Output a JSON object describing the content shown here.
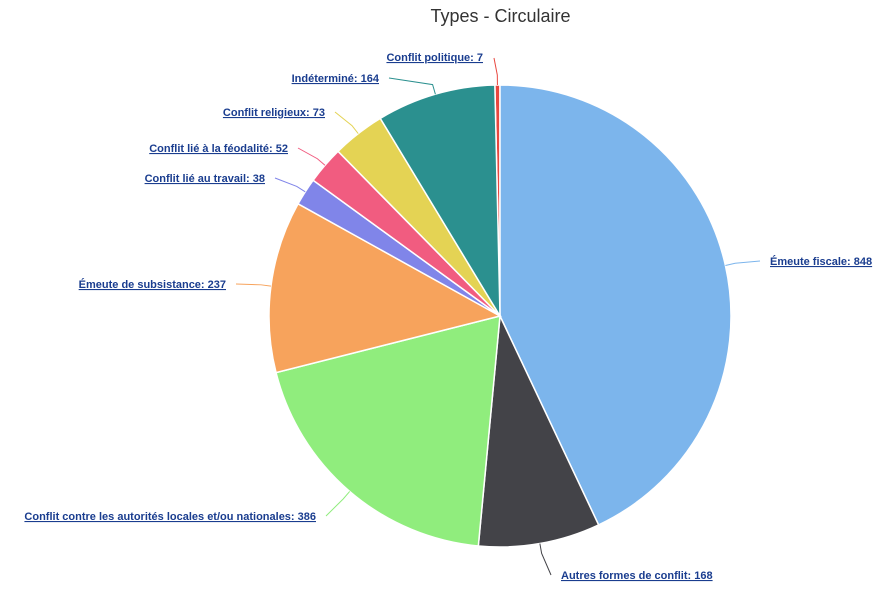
{
  "chart_data": {
    "type": "pie",
    "title": "Types - Circulaire",
    "slices": [
      {
        "label": "Conflit politique: 7",
        "value": 7,
        "color": "#e8473f"
      },
      {
        "label": "Émeute fiscale: 848",
        "value": 848,
        "color": "#7cb5ec"
      },
      {
        "label": "Autres formes de conflit: 168",
        "value": 168,
        "color": "#434348"
      },
      {
        "label": "Conflit contre les autorités locales et/ou nationales: 386",
        "value": 386,
        "color": "#90ed7d"
      },
      {
        "label": "Émeute de subsistance: 237",
        "value": 237,
        "color": "#f7a35c"
      },
      {
        "label": "Conflit lié au travail: 38",
        "value": 38,
        "color": "#8085e9"
      },
      {
        "label": "Conflit lié à la féodalité: 52",
        "value": 52,
        "color": "#f15c80"
      },
      {
        "label": "Conflit religieux: 73",
        "value": 73,
        "color": "#e4d354"
      },
      {
        "label": "Indéterminé: 164",
        "value": 164,
        "color": "#2b908f"
      }
    ]
  }
}
